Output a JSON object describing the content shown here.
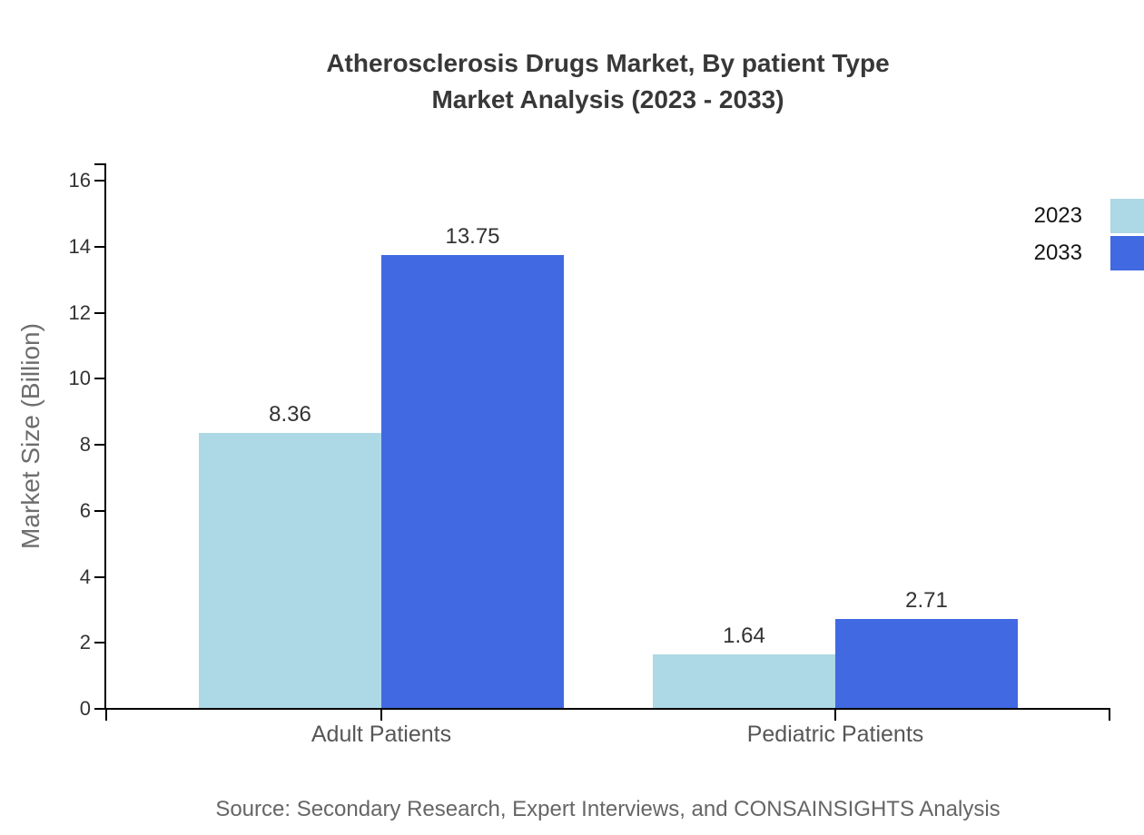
{
  "title": {
    "line1": "Atherosclerosis Drugs Market, By patient Type",
    "line2": "Market Analysis (2023 - 2033)"
  },
  "chart_data": {
    "type": "bar",
    "title": "Atherosclerosis Drugs Market, By patient Type Market Analysis (2023 - 2033)",
    "categories": [
      "Adult Patients",
      "Pediatric Patients"
    ],
    "series": [
      {
        "name": "2023",
        "values": [
          8.36,
          1.64
        ],
        "color": "#ADD8E6"
      },
      {
        "name": "2033",
        "values": [
          13.75,
          2.71
        ],
        "color": "#4169E1"
      }
    ],
    "value_labels": [
      [
        "8.36",
        "1.64"
      ],
      [
        "13.75",
        "2.71"
      ]
    ],
    "xlabel": "",
    "ylabel": "Market Size (Billion)",
    "ylim": [
      0,
      16
    ],
    "ytick_step": 2,
    "yticks": [
      0,
      2,
      4,
      6,
      8,
      10,
      12,
      14,
      16
    ],
    "grid": false,
    "legend_position": "top-right",
    "bar_label_color": "#333333",
    "axis_color": "#000000"
  },
  "source_note": "Source: Secondary Research, Expert Interviews, and CONSAINSIGHTS Analysis"
}
